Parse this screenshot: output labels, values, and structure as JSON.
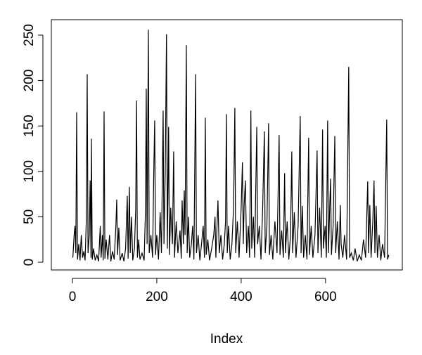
{
  "chart_data": {
    "type": "line",
    "xlabel": "Index",
    "color": "#000000",
    "x": [
      1,
      4,
      6,
      8,
      10,
      12,
      15,
      18,
      21,
      24,
      27,
      30,
      33,
      35,
      37,
      40,
      42,
      44,
      45,
      47,
      50,
      54,
      58,
      62,
      66,
      68,
      71,
      73,
      75,
      77,
      80,
      84,
      88,
      91,
      95,
      99,
      103,
      105,
      107,
      110,
      113,
      118,
      122,
      126,
      130,
      132,
      135,
      137,
      140,
      143,
      147,
      150,
      152,
      154,
      157,
      160,
      165,
      170,
      173,
      175,
      177,
      180,
      182,
      186,
      190,
      193,
      195,
      197,
      200,
      204,
      208,
      211,
      215,
      217,
      220,
      223,
      225,
      228,
      230,
      233,
      237,
      240,
      242,
      246,
      250,
      255,
      258,
      260,
      263,
      265,
      267,
      270,
      272,
      275,
      278,
      282,
      285,
      288,
      292,
      294,
      298,
      302,
      306,
      310,
      313,
      315,
      317,
      321,
      325,
      330,
      335,
      338,
      340,
      345,
      348,
      352,
      356,
      360,
      363,
      365,
      367,
      370,
      374,
      378,
      382,
      385,
      387,
      391,
      395,
      400,
      403,
      405,
      407,
      410,
      413,
      417,
      420,
      423,
      425,
      429,
      432,
      437,
      439,
      443,
      447,
      451,
      455,
      457,
      461,
      465,
      467,
      471,
      475,
      480,
      485,
      490,
      492,
      496,
      500,
      503,
      505,
      509,
      513,
      517,
      520,
      522,
      526,
      530,
      535,
      540,
      542,
      545,
      548,
      552,
      556,
      560,
      562,
      566,
      570,
      575,
      580,
      582,
      586,
      590,
      593,
      595,
      599,
      602,
      605,
      607,
      610,
      612,
      614,
      618,
      622,
      624,
      628,
      632,
      635,
      637,
      641,
      645,
      650,
      655,
      657,
      661,
      666,
      670,
      675,
      680,
      685,
      690,
      695,
      700,
      702,
      705,
      708,
      712,
      715,
      717,
      720,
      723,
      727,
      731,
      735,
      740,
      745,
      747,
      750
    ],
    "values": [
      5,
      30,
      40,
      10,
      165,
      3,
      20,
      2,
      30,
      5,
      12,
      2,
      48,
      207,
      10,
      30,
      90,
      5,
      136,
      3,
      15,
      2,
      8,
      1,
      40,
      5,
      30,
      2,
      166,
      4,
      25,
      3,
      30,
      1,
      12,
      3,
      40,
      69,
      8,
      38,
      2,
      10,
      1,
      15,
      73,
      4,
      83,
      10,
      50,
      2,
      15,
      58,
      178,
      5,
      25,
      3,
      10,
      2,
      55,
      191,
      20,
      256,
      10,
      30,
      5,
      105,
      156,
      8,
      30,
      3,
      55,
      10,
      167,
      20,
      100,
      251,
      15,
      149,
      8,
      60,
      20,
      122,
      5,
      45,
      10,
      35,
      4,
      68,
      20,
      79,
      30,
      239,
      10,
      50,
      5,
      20,
      40,
      3,
      207,
      10,
      30,
      2,
      20,
      40,
      5,
      159,
      8,
      25,
      2,
      15,
      30,
      50,
      5,
      68,
      10,
      30,
      3,
      20,
      45,
      163,
      10,
      40,
      3,
      20,
      60,
      170,
      10,
      45,
      5,
      60,
      110,
      20,
      62,
      90,
      10,
      40,
      5,
      167,
      15,
      50,
      5,
      149,
      20,
      40,
      3,
      60,
      144,
      10,
      40,
      153,
      8,
      30,
      3,
      45,
      10,
      140,
      8,
      35,
      5,
      98,
      10,
      45,
      3,
      30,
      122,
      10,
      55,
      5,
      40,
      161,
      10,
      62,
      5,
      30,
      3,
      137,
      8,
      40,
      5,
      30,
      123,
      10,
      60,
      5,
      146,
      15,
      40,
      5,
      156,
      10,
      62,
      92,
      8,
      40,
      139,
      10,
      45,
      3,
      63,
      20,
      5,
      30,
      3,
      215,
      5,
      10,
      2,
      15,
      1,
      8,
      2,
      25,
      5,
      89,
      10,
      63,
      5,
      45,
      90,
      10,
      62,
      5,
      30,
      2,
      20,
      5,
      157,
      3,
      8
    ],
    "xlim": [
      -50,
      782
    ],
    "ylim": [
      -8.5,
      267
    ],
    "xticks": [
      0,
      200,
      400,
      600
    ],
    "yticks": [
      0,
      50,
      100,
      150,
      200,
      250
    ]
  }
}
